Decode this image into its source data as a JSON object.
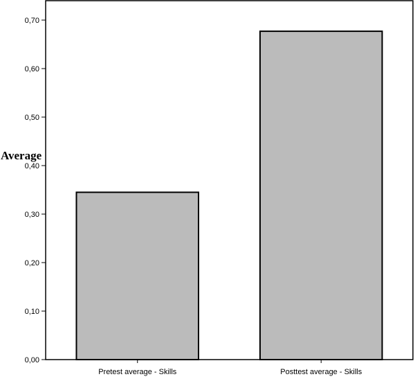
{
  "chart_data": {
    "type": "bar",
    "title": "",
    "xlabel": "",
    "ylabel": "Average",
    "categories": [
      "Pretest average - Skills",
      "Posttest average - Skills"
    ],
    "values": [
      0.345,
      0.677
    ],
    "ylim": [
      0,
      0.74
    ],
    "yticks": [
      0,
      0.1,
      0.2,
      0.3,
      0.4,
      0.5,
      0.6,
      0.7
    ],
    "ytick_labels": [
      "0,00",
      "0,10",
      "0,20",
      "0,30",
      "0,40",
      "0,50",
      "0,60",
      "0,70"
    ],
    "grid": false,
    "legend": "none",
    "bar_color": "#bbbbbb",
    "edge_color": "#000000"
  }
}
